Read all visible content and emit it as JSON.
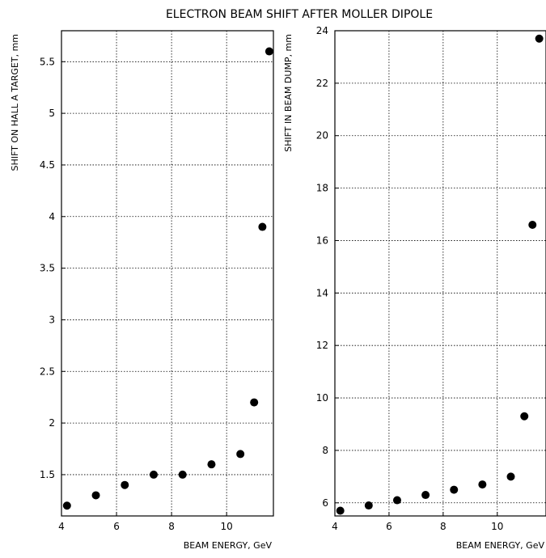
{
  "title": "ELECTRON BEAM SHIFT AFTER MOLLER DIPOLE",
  "chart_data": [
    {
      "type": "scatter",
      "xlabel": "BEAM ENERGY, GeV",
      "ylabel": "SHIFT ON HALL A TARGET, mm",
      "xlim": [
        4,
        11.7
      ],
      "ylim": [
        1.1,
        5.8
      ],
      "xticks": [
        4,
        6,
        8,
        10
      ],
      "yticks": [
        1.5,
        2,
        2.5,
        3,
        3.5,
        4,
        4.5,
        5,
        5.5
      ],
      "ytick_labels": [
        "1.5",
        "2",
        "2.5",
        "3",
        "3.5",
        "4",
        "4.5",
        "5",
        "5.5"
      ],
      "grid": true,
      "x": [
        4.2,
        5.25,
        6.3,
        7.35,
        8.4,
        9.45,
        10.5,
        11.0,
        11.3,
        11.55
      ],
      "y": [
        1.2,
        1.3,
        1.4,
        1.5,
        1.5,
        1.6,
        1.7,
        2.2,
        3.9,
        5.6
      ]
    },
    {
      "type": "scatter",
      "xlabel": "BEAM ENERGY, GeV",
      "ylabel": "SHIFT IN BEAM DUMP, mm",
      "xlim": [
        4,
        11.8
      ],
      "ylim": [
        5.5,
        24
      ],
      "xticks": [
        4,
        6,
        8,
        10
      ],
      "yticks": [
        6,
        8,
        10,
        12,
        14,
        16,
        18,
        20,
        22,
        24
      ],
      "ytick_labels": [
        "6",
        "8",
        "10",
        "12",
        "14",
        "16",
        "18",
        "20",
        "22",
        "24"
      ],
      "grid": true,
      "x": [
        4.2,
        5.25,
        6.3,
        7.35,
        8.4,
        9.45,
        10.5,
        11.0,
        11.3,
        11.55
      ],
      "y": [
        5.7,
        5.9,
        6.1,
        6.3,
        6.5,
        6.7,
        7.0,
        9.3,
        16.6,
        23.7
      ]
    }
  ]
}
